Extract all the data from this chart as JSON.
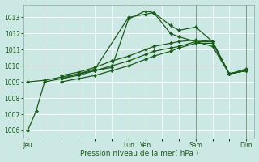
{
  "bg_color": "#cce8e4",
  "grid_color": "#ffffff",
  "line_color": "#1a5c1a",
  "xlabel": "Pression niveau de la mer( hPa )",
  "ylim": [
    1005.5,
    1013.8
  ],
  "yticks": [
    1006,
    1007,
    1008,
    1009,
    1010,
    1011,
    1012,
    1013
  ],
  "xtick_labels": [
    "Jeu",
    "Lun",
    "Ven",
    "Sam",
    "Dim"
  ],
  "xtick_positions": [
    0,
    12,
    14,
    20,
    26
  ],
  "vline_positions": [
    0,
    12,
    14,
    20,
    26
  ],
  "xlim": [
    -0.5,
    27
  ],
  "series": [
    {
      "x": [
        0,
        1,
        2,
        4,
        6,
        8,
        12,
        14,
        15,
        17,
        18,
        20,
        22,
        24,
        26
      ],
      "y": [
        1006.0,
        1007.2,
        1009.0,
        1009.2,
        1009.5,
        1009.8,
        1013.0,
        1013.2,
        1013.3,
        1012.0,
        1011.8,
        1011.5,
        1011.2,
        1009.5,
        1009.7
      ]
    },
    {
      "x": [
        0,
        2,
        4,
        6,
        8,
        10,
        12,
        14,
        15,
        17,
        18,
        20,
        22,
        24,
        26
      ],
      "y": [
        1009.0,
        1009.1,
        1009.3,
        1009.5,
        1009.7,
        1009.9,
        1012.9,
        1013.4,
        1013.3,
        1012.5,
        1012.2,
        1012.4,
        1011.5,
        1009.5,
        1009.8
      ]
    },
    {
      "x": [
        4,
        6,
        8,
        10,
        12,
        14,
        15,
        17,
        18,
        20,
        22,
        24,
        26
      ],
      "y": [
        1009.4,
        1009.6,
        1009.9,
        1010.3,
        1010.6,
        1011.0,
        1011.2,
        1011.4,
        1011.5,
        1011.6,
        1011.5,
        1009.5,
        1009.7
      ]
    },
    {
      "x": [
        4,
        6,
        8,
        10,
        12,
        14,
        15,
        17,
        18,
        20,
        22,
        24,
        26
      ],
      "y": [
        1009.2,
        1009.4,
        1009.7,
        1010.0,
        1010.3,
        1010.7,
        1010.9,
        1011.1,
        1011.2,
        1011.5,
        1011.5,
        1009.5,
        1009.7
      ]
    },
    {
      "x": [
        4,
        6,
        8,
        10,
        12,
        14,
        15,
        17,
        18,
        20,
        22,
        24,
        26
      ],
      "y": [
        1009.0,
        1009.2,
        1009.4,
        1009.7,
        1010.0,
        1010.4,
        1010.6,
        1010.9,
        1011.1,
        1011.4,
        1011.4,
        1009.5,
        1009.7
      ]
    }
  ]
}
